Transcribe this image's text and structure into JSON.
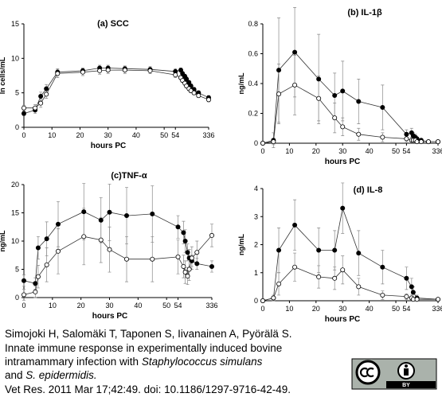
{
  "chart_data": [
    {
      "type": "line",
      "title": "(a) SCC",
      "ylabel": "ln cells/mL",
      "xlabel": "hours PC",
      "xlim": [
        0,
        336
      ],
      "xticks": [
        0,
        10,
        20,
        30,
        40,
        50,
        54,
        336
      ],
      "ylim": [
        0,
        15
      ],
      "yticks": [
        0,
        5,
        10,
        15
      ],
      "x": [
        0,
        4,
        6,
        8,
        12,
        21,
        27,
        30,
        36,
        45,
        54,
        57,
        60,
        66,
        72,
        84,
        96,
        120,
        168,
        336
      ],
      "series": [
        {
          "color": "#000000",
          "values": [
            2.0,
            2.5,
            4.5,
            5.6,
            8.0,
            8.2,
            8.6,
            8.6,
            8.5,
            8.4,
            8.1,
            8.3,
            7.8,
            7.4,
            7.0,
            6.5,
            6.0,
            5.5,
            5.0,
            4.3
          ],
          "errors": [
            0.3,
            0.5,
            0.6,
            0.6,
            0.5,
            0.4,
            0.4,
            0.4,
            0.4,
            0.4,
            0.4,
            0.3,
            0.3,
            0.3,
            0.3,
            0.3,
            0.3,
            0.3,
            0.3,
            0.3
          ]
        },
        {
          "color": "#ffffff",
          "values": [
            2.8,
            2.8,
            3.5,
            4.8,
            7.8,
            8.0,
            8.2,
            8.3,
            8.3,
            8.2,
            7.6,
            7.2,
            6.8,
            6.4,
            6.0,
            5.6,
            5.3,
            5.0,
            4.6,
            4.0
          ],
          "errors": [
            0.4,
            0.5,
            0.6,
            0.6,
            0.6,
            0.5,
            0.5,
            0.5,
            0.5,
            0.4,
            0.4,
            0.3,
            0.3,
            0.3,
            0.3,
            0.3,
            0.3,
            0.3,
            0.3,
            0.3
          ]
        }
      ]
    },
    {
      "type": "line",
      "title": "(b) IL-1β",
      "ylabel": "ng/mL",
      "xlabel": "hours PC",
      "xlim": [
        0,
        336
      ],
      "xticks": [
        0,
        10,
        20,
        30,
        40,
        50,
        54,
        336
      ],
      "ylim": [
        0,
        0.8
      ],
      "yticks": [
        0,
        0.2,
        0.4,
        0.6,
        0.8
      ],
      "x": [
        0,
        4,
        6,
        12,
        21,
        27,
        30,
        36,
        45,
        54,
        57,
        60,
        66,
        72,
        96,
        168,
        336
      ],
      "series": [
        {
          "color": "#000000",
          "values": [
            0,
            0.02,
            0.49,
            0.61,
            0.43,
            0.32,
            0.35,
            0.28,
            0.24,
            0.06,
            0.07,
            0.05,
            0.04,
            0.03,
            0.02,
            0.01,
            0.01
          ],
          "errors": [
            0,
            0.05,
            0.35,
            0.3,
            0.3,
            0.15,
            0.2,
            0.15,
            0.15,
            0.03,
            0.03,
            0.02,
            0.02,
            0.01,
            0.01,
            0.01,
            0.01
          ]
        },
        {
          "color": "#ffffff",
          "values": [
            0,
            0.01,
            0.33,
            0.39,
            0.3,
            0.17,
            0.11,
            0.06,
            0.04,
            0.03,
            0.02,
            0.02,
            0.02,
            0.01,
            0.01,
            0.01,
            0.01
          ],
          "errors": [
            0,
            0.02,
            0.2,
            0.2,
            0.15,
            0.1,
            0.06,
            0.04,
            0.03,
            0.02,
            0.01,
            0.01,
            0.01,
            0.01,
            0.01,
            0.01,
            0.01
          ]
        }
      ]
    },
    {
      "type": "line",
      "title": "(c)TNF-α",
      "ylabel": "ng/mL",
      "xlabel": "hours PC",
      "xlim": [
        0,
        336
      ],
      "xticks": [
        0,
        10,
        20,
        30,
        40,
        50,
        54,
        336
      ],
      "ylim": [
        0,
        20
      ],
      "yticks": [
        0,
        5,
        10,
        15,
        20
      ],
      "x": [
        0,
        4,
        5,
        8,
        12,
        21,
        27,
        30,
        36,
        45,
        54,
        57,
        60,
        66,
        72,
        84,
        120,
        336
      ],
      "series": [
        {
          "color": "#000000",
          "values": [
            3.0,
            2.5,
            8.8,
            10.4,
            13.0,
            15.2,
            13.7,
            15.1,
            14.5,
            14.8,
            12.5,
            11.5,
            10.0,
            8.0,
            7.0,
            6.5,
            6.0,
            5.5
          ],
          "errors": [
            1,
            1,
            2,
            3,
            4,
            5,
            4,
            5,
            5,
            5,
            2,
            2,
            2,
            1.5,
            1.5,
            1,
            1,
            1
          ]
        },
        {
          "color": "#ffffff",
          "values": [
            0.5,
            1.0,
            3.7,
            5.8,
            8.2,
            10.8,
            10.2,
            8.5,
            6.8,
            6.8,
            7.2,
            5.5,
            4.5,
            3.8,
            5.0,
            7.0,
            8.0,
            11.0
          ],
          "errors": [
            1,
            1,
            2,
            3,
            4,
            5,
            4,
            4,
            4,
            4,
            3,
            2,
            2,
            1.5,
            2,
            2,
            2,
            2
          ]
        }
      ]
    },
    {
      "type": "line",
      "title": "(d) IL-8",
      "ylabel": "ng/mL",
      "xlabel": "hours PC",
      "xlim": [
        0,
        336
      ],
      "xticks": [
        0,
        10,
        20,
        30,
        40,
        50,
        54,
        336
      ],
      "ylim": [
        0,
        4
      ],
      "yticks": [
        0,
        1,
        2,
        3,
        4
      ],
      "x": [
        0,
        4,
        6,
        12,
        21,
        27,
        30,
        36,
        45,
        54,
        57,
        60,
        72,
        336
      ],
      "series": [
        {
          "color": "#000000",
          "values": [
            0,
            0.1,
            1.8,
            2.7,
            1.8,
            1.8,
            3.3,
            1.7,
            1.2,
            0.8,
            0.5,
            0.3,
            0.1,
            0.05
          ],
          "errors": [
            0,
            0.1,
            0.8,
            0.9,
            0.8,
            0.7,
            0.9,
            0.8,
            0.6,
            0.4,
            0.3,
            0.2,
            0.1,
            0.05
          ]
        },
        {
          "color": "#ffffff",
          "values": [
            0,
            0.1,
            0.6,
            1.2,
            0.85,
            0.8,
            1.1,
            0.5,
            0.2,
            0.15,
            0.1,
            0.05,
            0.05,
            0.05
          ],
          "errors": [
            0,
            0.05,
            0.4,
            0.5,
            0.4,
            0.4,
            0.5,
            0.3,
            0.15,
            0.1,
            0.05,
            0.05,
            0.05,
            0.05
          ]
        }
      ]
    }
  ],
  "caption": {
    "line1": "Simojoki H, Salomäki T, Taponen S, Iivanainen A, Pyörälä S.",
    "line2": "Innate immune response in experimentally induced bovine",
    "line3_text": "intramammary infection with",
    "line3_italic": "Staphylococcus simulans",
    "line4_text": "and",
    "line4_italic": "S. epidermidis.",
    "line5": "Vet Res. 2011 Mar 17;42:49. doi: 10.1186/1297-9716-42-49."
  },
  "license": "BY"
}
